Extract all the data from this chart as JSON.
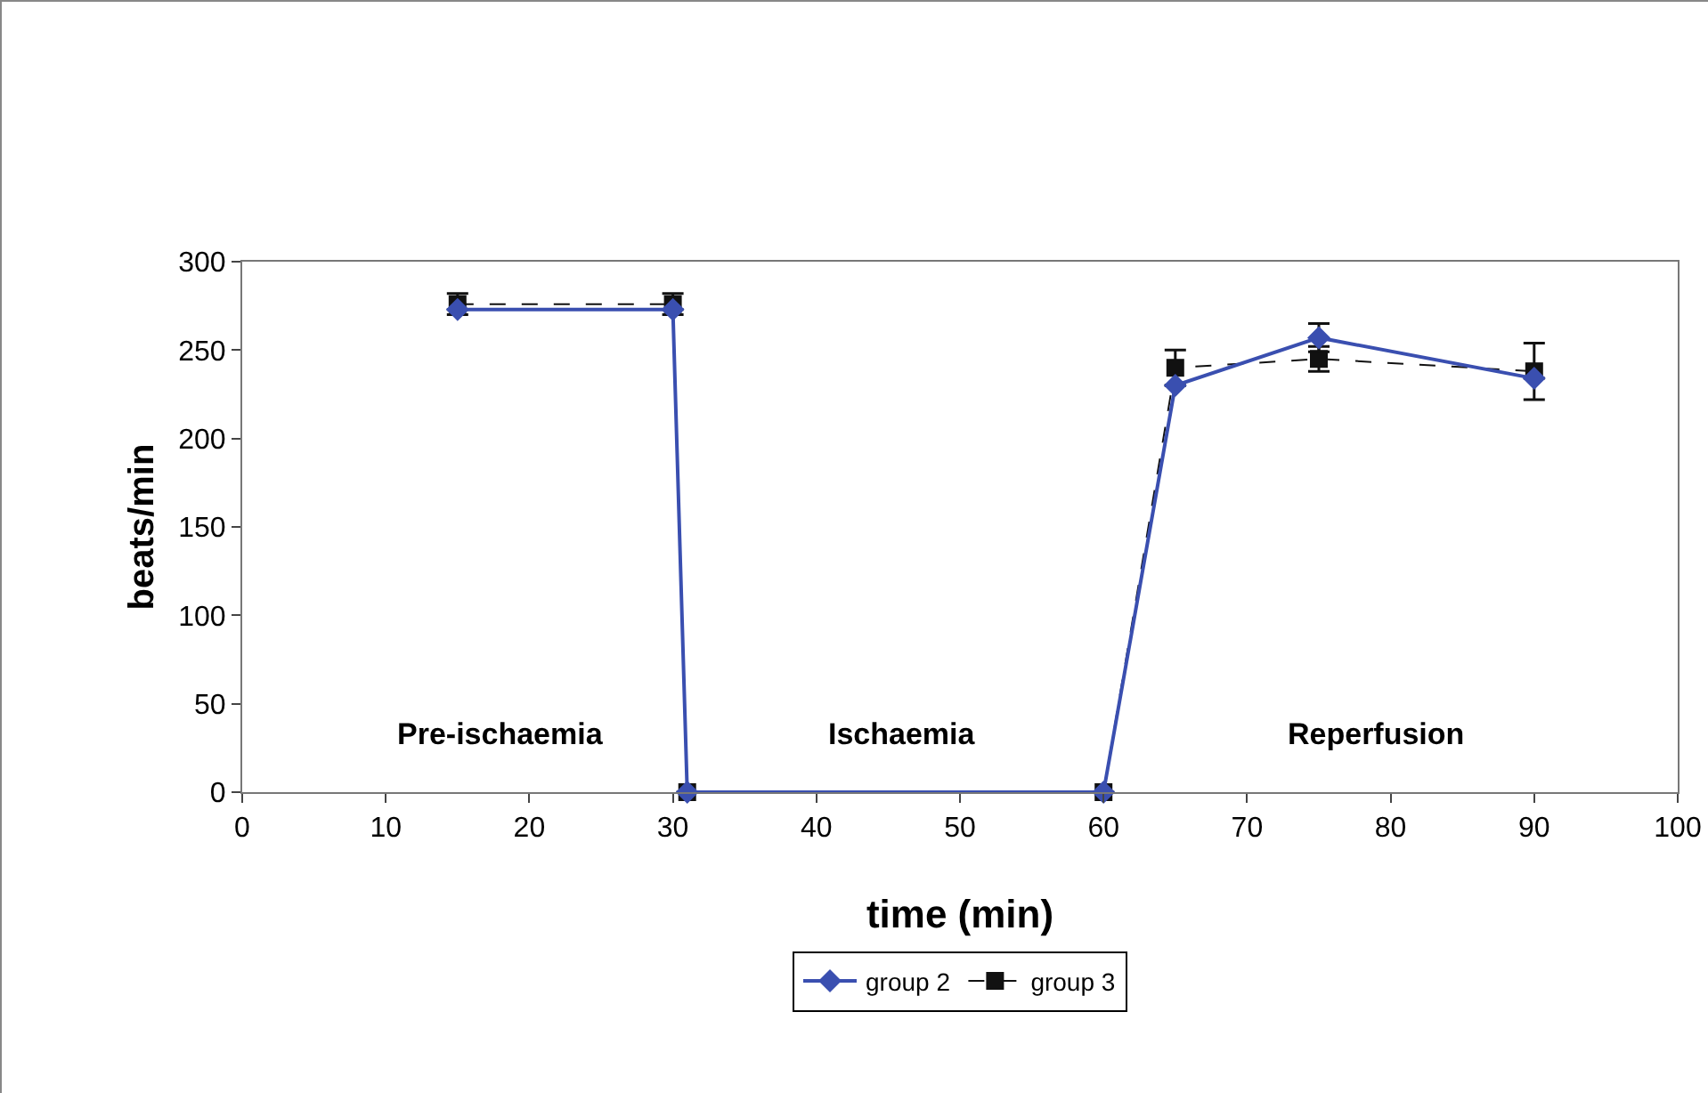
{
  "chart_data": {
    "type": "line",
    "xlabel": "time (min)",
    "ylabel": "beats/min",
    "x": [
      15,
      30,
      31,
      60,
      65,
      75,
      90
    ],
    "xlim": [
      0,
      100
    ],
    "xticks": [
      0,
      10,
      20,
      30,
      40,
      50,
      60,
      70,
      80,
      90,
      100
    ],
    "ylim": [
      0,
      300
    ],
    "yticks": [
      0,
      50,
      100,
      150,
      200,
      250,
      300
    ],
    "grid": false,
    "legend": "bottom",
    "series": [
      {
        "name": "group 2",
        "color": "#3a4fb0",
        "values": [
          273,
          273,
          0,
          0,
          230,
          257,
          234
        ],
        "errors": [
          null,
          null,
          null,
          null,
          null,
          8,
          null
        ],
        "marker": "diamond",
        "line_style": "solid"
      },
      {
        "name": "group 3",
        "color": "#111111",
        "values": [
          276,
          276,
          0,
          0,
          240,
          245,
          238
        ],
        "errors": [
          6,
          6,
          null,
          null,
          10,
          7,
          16
        ],
        "marker": "square",
        "line_style": "dashed"
      }
    ],
    "annotations": [
      "Pre-ischaemia",
      "Ischaemia",
      "Reperfusion"
    ]
  }
}
